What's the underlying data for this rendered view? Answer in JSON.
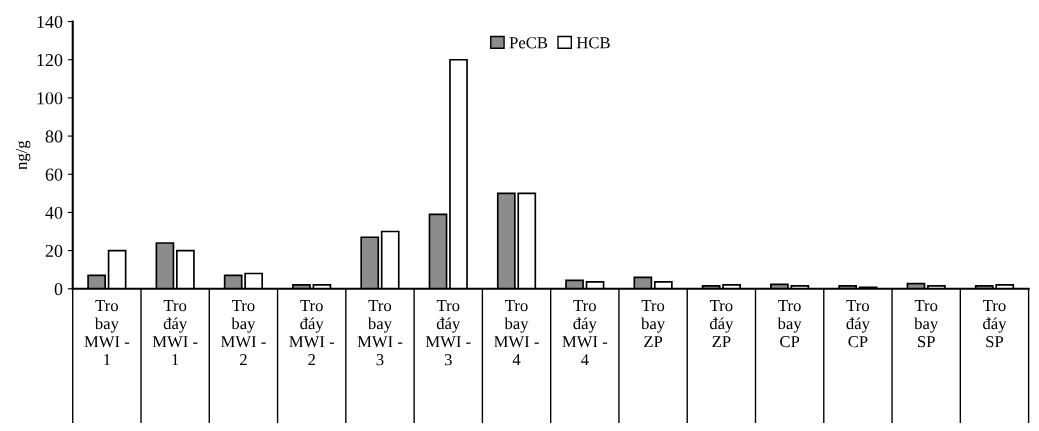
{
  "chart_data": {
    "type": "bar",
    "ylabel": "ng/g",
    "categories": [
      "Tro\nbay\nMWI -\n1",
      "Tro\nđáy\nMWI -\n1",
      "Tro\nbay\nMWI -\n2",
      "Tro\nđáy\nMWI -\n2",
      "Tro\nbay\nMWI -\n3",
      "Tro\nđáy\nMWI -\n3",
      "Tro\nbay\nMWI -\n4",
      "Tro\nđáy\nMWI -\n4",
      "Tro\nbay\nZP",
      "Tro\nđáy\nZP",
      "Tro\nbay\nCP",
      "Tro\nđáy\nCP",
      "Tro\nbay\nSP",
      "Tro\nđáy\nSP"
    ],
    "series": [
      {
        "name": "PeCB",
        "color": "#8c8c8c",
        "values": [
          7,
          24,
          7,
          2,
          27,
          39,
          50,
          4.4,
          6,
          1.5,
          2.3,
          1.5,
          2.7,
          1.5
        ]
      },
      {
        "name": "HCB",
        "color": "#ffffff",
        "values": [
          20,
          20,
          8,
          2,
          30,
          120,
          50,
          3.6,
          3.6,
          2,
          1.5,
          0.8,
          1.5,
          2
        ]
      }
    ],
    "ylim": [
      0,
      140
    ],
    "yticks": [
      0,
      20,
      40,
      60,
      80,
      100,
      120,
      140
    ],
    "grid": false,
    "legend": "top"
  }
}
